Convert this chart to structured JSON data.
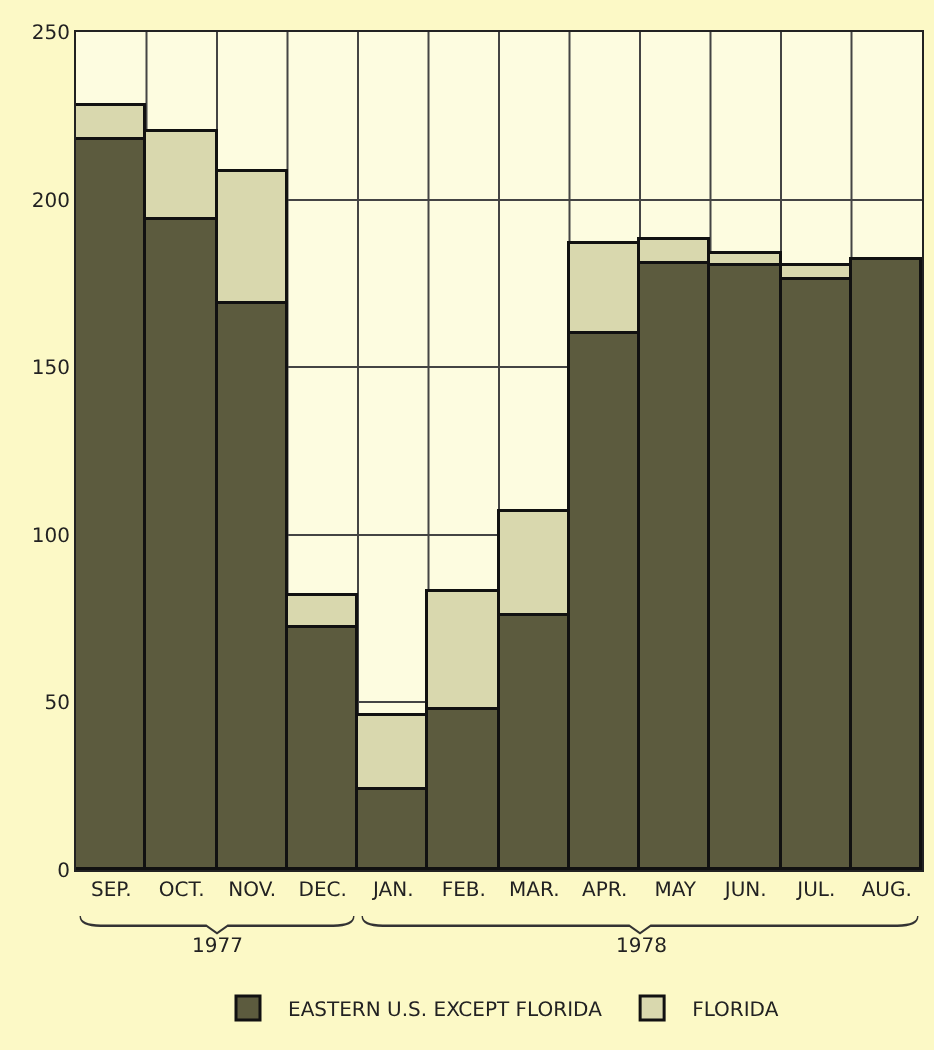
{
  "chart_data": {
    "type": "bar",
    "stacked": true,
    "categories": [
      "SEP.",
      "OCT.",
      "NOV.",
      "DEC.",
      "JAN.",
      "FEB.",
      "MAR.",
      "APR.",
      "MAY",
      "JUN.",
      "JUL.",
      "AUG."
    ],
    "series": [
      {
        "name": "EASTERN U.S. EXCEPT FLORIDA",
        "color": "#5c5b3e",
        "values": [
          218,
          194,
          169,
          72,
          24,
          48,
          76,
          160,
          181,
          180,
          176,
          182
        ]
      },
      {
        "name": "FLORIDA",
        "color": "#d9d8ae",
        "values": [
          10,
          26,
          39,
          10,
          22,
          35,
          31,
          27,
          7,
          4,
          4,
          null
        ]
      }
    ],
    "ylim": [
      0,
      250
    ],
    "yticks": [
      0,
      50,
      100,
      150,
      200,
      250
    ],
    "grid": true,
    "legend": "bottom",
    "annotations": [
      "1977",
      "1978"
    ]
  }
}
